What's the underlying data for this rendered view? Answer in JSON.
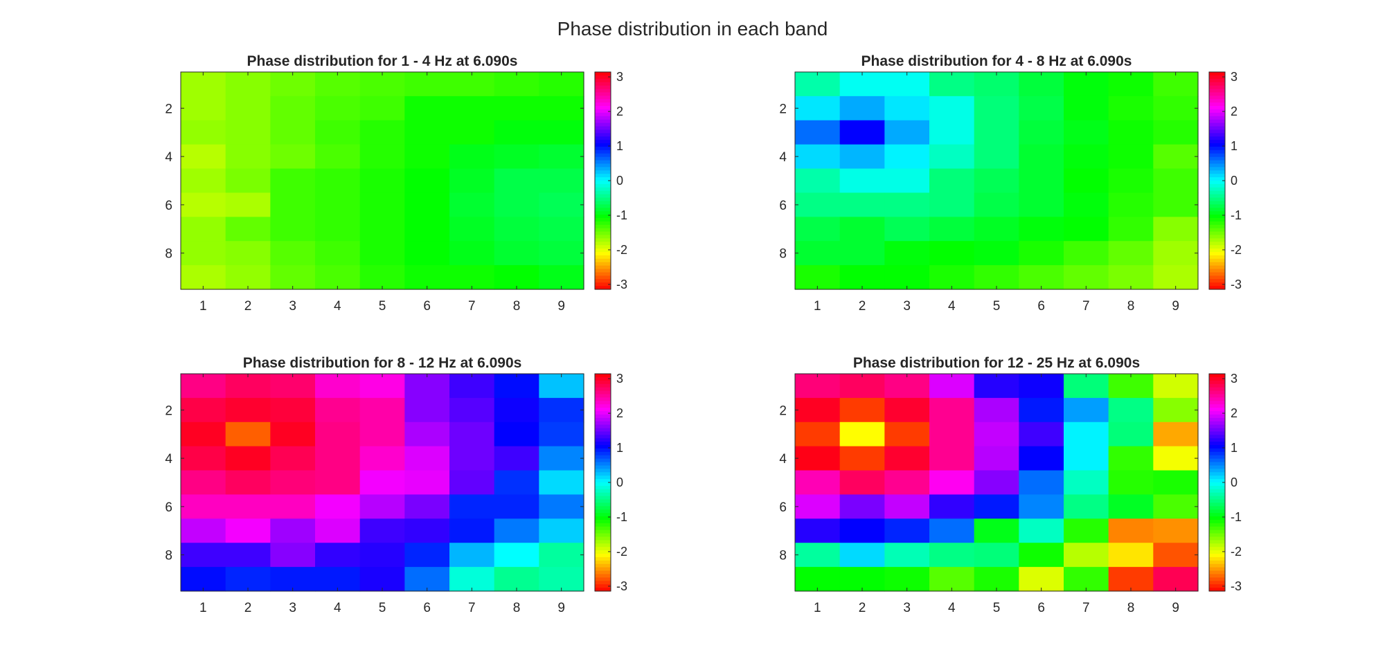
{
  "figure": {
    "suptitle": "Phase distribution in each band"
  },
  "colormap": "hsv",
  "chart_data": [
    {
      "type": "heatmap",
      "title": "Phase distribution for 1 - 4 Hz at 6.090s",
      "x": [
        1,
        2,
        3,
        4,
        5,
        6,
        7,
        8,
        9
      ],
      "y": [
        1,
        2,
        3,
        4,
        5,
        6,
        7,
        8,
        9
      ],
      "xticks": [
        1,
        2,
        3,
        4,
        5,
        6,
        7,
        8,
        9
      ],
      "yticks": [
        2,
        4,
        6,
        8
      ],
      "clim": [
        -3.1416,
        3.1416
      ],
      "colorbar_ticks": [
        3,
        2,
        1,
        0,
        -1,
        -2,
        -3
      ],
      "values": [
        [
          -1.7,
          -1.6,
          -1.5,
          -1.4,
          -1.35,
          -1.3,
          -1.3,
          -1.25,
          -1.2
        ],
        [
          -1.7,
          -1.6,
          -1.45,
          -1.35,
          -1.3,
          -1.1,
          -1.1,
          -1.1,
          -1.1
        ],
        [
          -1.65,
          -1.6,
          -1.45,
          -1.3,
          -1.2,
          -1.1,
          -1.1,
          -1.0,
          -1.0
        ],
        [
          -1.8,
          -1.6,
          -1.5,
          -1.35,
          -1.2,
          -1.1,
          -0.95,
          -0.9,
          -0.85
        ],
        [
          -1.7,
          -1.55,
          -1.3,
          -1.25,
          -1.15,
          -1.05,
          -0.9,
          -0.75,
          -0.75
        ],
        [
          -1.8,
          -1.75,
          -1.3,
          -1.25,
          -1.15,
          -1.05,
          -0.85,
          -0.75,
          -0.7
        ],
        [
          -1.65,
          -1.45,
          -1.3,
          -1.25,
          -1.15,
          -1.05,
          -0.9,
          -0.8,
          -0.75
        ],
        [
          -1.65,
          -1.6,
          -1.4,
          -1.3,
          -1.15,
          -1.05,
          -0.95,
          -0.85,
          -0.8
        ],
        [
          -1.75,
          -1.65,
          -1.45,
          -1.35,
          -1.2,
          -1.1,
          -1.1,
          -1.05,
          -0.95
        ]
      ]
    },
    {
      "type": "heatmap",
      "title": "Phase distribution for 4 - 8 Hz at 6.090s",
      "x": [
        1,
        2,
        3,
        4,
        5,
        6,
        7,
        8,
        9
      ],
      "y": [
        1,
        2,
        3,
        4,
        5,
        6,
        7,
        8,
        9
      ],
      "xticks": [
        1,
        2,
        3,
        4,
        5,
        6,
        7,
        8,
        9
      ],
      "yticks": [
        2,
        4,
        6,
        8
      ],
      "clim": [
        -3.1416,
        3.1416
      ],
      "colorbar_ticks": [
        3,
        2,
        1,
        0,
        -1,
        -2,
        -3
      ],
      "values": [
        [
          -0.35,
          -0.05,
          -0.05,
          -0.5,
          -0.6,
          -0.8,
          -1.0,
          -1.1,
          -1.3
        ],
        [
          0.1,
          0.35,
          0.1,
          -0.1,
          -0.55,
          -0.75,
          -1.0,
          -1.15,
          -1.25
        ],
        [
          0.6,
          1.05,
          0.35,
          -0.1,
          -0.55,
          -0.8,
          -0.95,
          -1.1,
          -1.2
        ],
        [
          0.15,
          0.3,
          0.05,
          -0.25,
          -0.55,
          -0.85,
          -1.0,
          -1.1,
          -1.4
        ],
        [
          -0.35,
          -0.1,
          -0.1,
          -0.55,
          -0.7,
          -0.85,
          -1.05,
          -1.15,
          -1.3
        ],
        [
          -0.5,
          -0.5,
          -0.5,
          -0.55,
          -0.75,
          -0.85,
          -1.0,
          -1.2,
          -1.3
        ],
        [
          -0.75,
          -0.85,
          -0.7,
          -0.8,
          -0.9,
          -1.0,
          -1.05,
          -1.25,
          -1.6
        ],
        [
          -0.85,
          -0.85,
          -1.0,
          -1.05,
          -1.0,
          -1.15,
          -1.3,
          -1.45,
          -1.7
        ],
        [
          -1.15,
          -1.05,
          -1.05,
          -1.15,
          -1.25,
          -1.35,
          -1.45,
          -1.55,
          -1.75
        ]
      ]
    },
    {
      "type": "heatmap",
      "title": "Phase distribution for 8 - 12 Hz at 6.090s",
      "x": [
        1,
        2,
        3,
        4,
        5,
        6,
        7,
        8,
        9
      ],
      "y": [
        1,
        2,
        3,
        4,
        5,
        6,
        7,
        8,
        9
      ],
      "xticks": [
        1,
        2,
        3,
        4,
        5,
        6,
        7,
        8,
        9
      ],
      "yticks": [
        2,
        4,
        6,
        8
      ],
      "clim": [
        -3.1416,
        3.1416
      ],
      "colorbar_ticks": [
        3,
        2,
        1,
        0,
        -1,
        -2,
        -3
      ],
      "values": [
        [
          2.6,
          2.75,
          2.7,
          2.3,
          2.2,
          1.6,
          1.3,
          1.0,
          0.25
        ],
        [
          2.85,
          2.95,
          2.9,
          2.55,
          2.45,
          1.6,
          1.4,
          1.1,
          0.85
        ],
        [
          3.0,
          -2.75,
          3.0,
          2.6,
          2.45,
          1.75,
          1.5,
          1.05,
          0.8
        ],
        [
          2.85,
          3.0,
          2.8,
          2.6,
          2.3,
          1.95,
          1.5,
          1.3,
          0.5
        ],
        [
          2.6,
          2.75,
          2.65,
          2.6,
          2.05,
          2.0,
          1.45,
          0.85,
          0.15
        ],
        [
          2.35,
          2.35,
          2.35,
          2.05,
          1.8,
          1.55,
          0.9,
          0.9,
          0.55
        ],
        [
          1.85,
          2.05,
          1.7,
          1.95,
          1.3,
          1.25,
          0.95,
          0.55,
          0.2
        ],
        [
          1.3,
          1.3,
          1.6,
          1.25,
          1.2,
          0.9,
          0.3,
          0.0,
          -0.4
        ],
        [
          1.0,
          0.9,
          0.95,
          0.95,
          1.15,
          0.6,
          -0.15,
          -0.45,
          -0.35
        ]
      ]
    },
    {
      "type": "heatmap",
      "title": "Phase distribution for 12 - 25 Hz at 6.090s",
      "x": [
        1,
        2,
        3,
        4,
        5,
        6,
        7,
        8,
        9
      ],
      "y": [
        1,
        2,
        3,
        4,
        5,
        6,
        7,
        8,
        9
      ],
      "xticks": [
        1,
        2,
        3,
        4,
        5,
        6,
        7,
        8,
        9
      ],
      "yticks": [
        2,
        4,
        6,
        8
      ],
      "clim": [
        -3.1416,
        3.1416
      ],
      "colorbar_ticks": [
        3,
        2,
        1,
        0,
        -1,
        -2,
        -3
      ],
      "values": [
        [
          2.65,
          2.75,
          2.6,
          1.95,
          1.2,
          1.1,
          -0.55,
          -1.3,
          -1.9
        ],
        [
          3.0,
          -2.9,
          2.95,
          2.55,
          1.75,
          0.95,
          0.4,
          -0.5,
          -1.6
        ],
        [
          -2.9,
          -2.1,
          -2.9,
          2.55,
          1.85,
          1.3,
          0.05,
          -0.55,
          -2.45
        ],
        [
          3.05,
          -2.9,
          2.95,
          2.55,
          1.8,
          1.05,
          0.05,
          -1.25,
          -2.05
        ],
        [
          2.4,
          2.75,
          2.55,
          2.15,
          1.6,
          0.6,
          -0.25,
          -1.2,
          -1.15
        ],
        [
          1.95,
          1.55,
          1.85,
          1.25,
          0.95,
          0.5,
          -0.5,
          -0.9,
          -1.35
        ],
        [
          1.2,
          1.05,
          0.9,
          0.6,
          -0.95,
          -0.25,
          -1.2,
          -2.6,
          -2.55
        ],
        [
          -0.4,
          0.15,
          -0.3,
          -0.5,
          -0.55,
          -1.1,
          -1.8,
          -2.2,
          -2.8
        ],
        [
          -1.05,
          -1.05,
          -1.1,
          -1.4,
          -1.15,
          -1.95,
          -1.25,
          -2.9,
          2.8
        ]
      ]
    }
  ]
}
